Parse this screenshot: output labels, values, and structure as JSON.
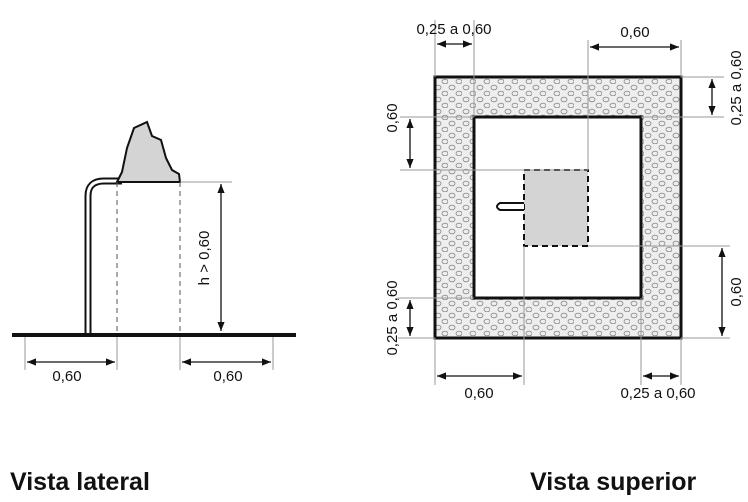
{
  "side_view": {
    "caption": "Vista lateral",
    "dim_left": "0,60",
    "dim_right": "0,60",
    "dim_height": "h > 0,60"
  },
  "top_view": {
    "caption": "Vista superior",
    "dim_top_left": "0,25 a 0,60",
    "dim_top_right": "0,60",
    "dim_right_top": "0,25 a 0,60",
    "dim_left_top": "0,60",
    "dim_left_bottom": "0,25 a 0,60",
    "dim_right_bottom": "0,60",
    "dim_bottom_left": "0,60",
    "dim_bottom_right": "0,25 a 0,60"
  },
  "colors": {
    "line": "#111111",
    "fixture_fill": "#d4d4d4",
    "hatch_fill": "#eeeeee",
    "guide_line": "#9a9a9a"
  }
}
